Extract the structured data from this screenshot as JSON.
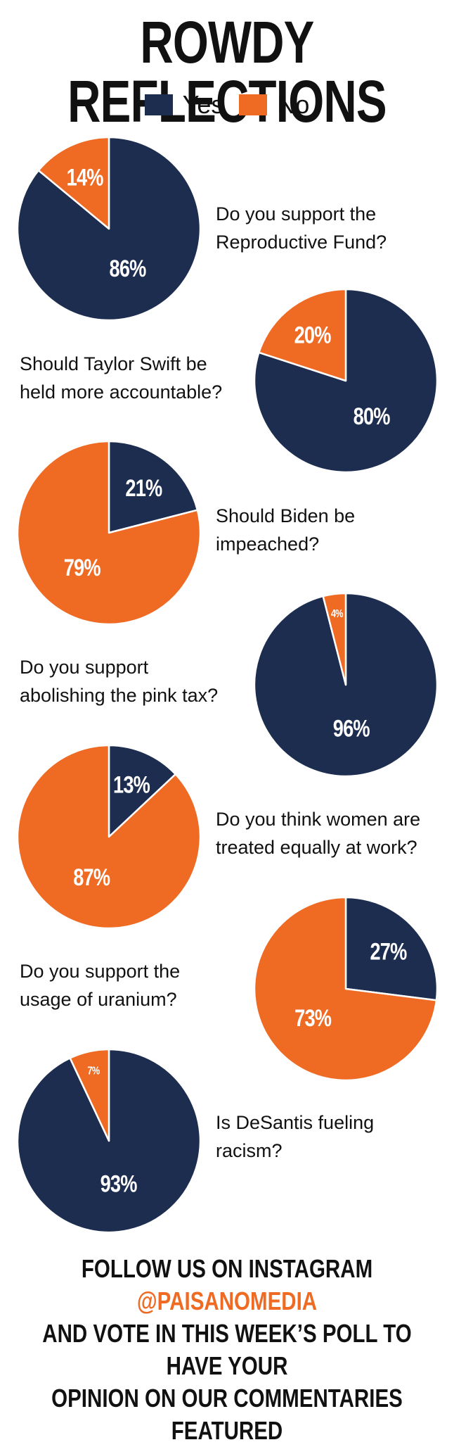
{
  "title": "ROWDY REFLECTIONS",
  "legend": [
    {
      "label": "Yes",
      "color": "#1c2d4f"
    },
    {
      "label": "No",
      "color": "#ef6a23"
    }
  ],
  "chart_data": [
    {
      "type": "pie",
      "question": "Do you support the Reproductive Fund?",
      "categories": [
        "Yes",
        "No"
      ],
      "values": [
        86,
        14
      ],
      "labels": [
        "86%",
        "14%"
      ]
    },
    {
      "type": "pie",
      "question": "Should Taylor Swift be held more accountable?",
      "categories": [
        "Yes",
        "No"
      ],
      "values": [
        80,
        20
      ],
      "labels": [
        "80%",
        "20%"
      ]
    },
    {
      "type": "pie",
      "question": "Should Biden be impeached?",
      "categories": [
        "Yes",
        "No"
      ],
      "values": [
        21,
        79
      ],
      "labels": [
        "21%",
        "79%"
      ]
    },
    {
      "type": "pie",
      "question": "Do you support abolishing the pink tax?",
      "categories": [
        "Yes",
        "No"
      ],
      "values": [
        96,
        4
      ],
      "labels": [
        "96%",
        "4%"
      ]
    },
    {
      "type": "pie",
      "question": "Do you think women are treated equally at work?",
      "categories": [
        "Yes",
        "No"
      ],
      "values": [
        13,
        87
      ],
      "labels": [
        "13%",
        "87%"
      ]
    },
    {
      "type": "pie",
      "question": "Do you support the usage of uranium?",
      "categories": [
        "Yes",
        "No"
      ],
      "values": [
        27,
        73
      ],
      "labels": [
        "27%",
        "73%"
      ]
    },
    {
      "type": "pie",
      "question": "Is DeSantis fueling racism?",
      "categories": [
        "Yes",
        "No"
      ],
      "values": [
        93,
        7
      ],
      "labels": [
        "93%",
        "7%"
      ]
    }
  ],
  "footer": {
    "line1_prefix": "FOLLOW US ON INSTAGRAM ",
    "handle": "@PAISANOMEDIA",
    "line2": "AND VOTE IN THIS WEEK’S POLL TO HAVE YOUR",
    "line3": "OPINION ON OUR COMMENTARIES FEATURED"
  }
}
